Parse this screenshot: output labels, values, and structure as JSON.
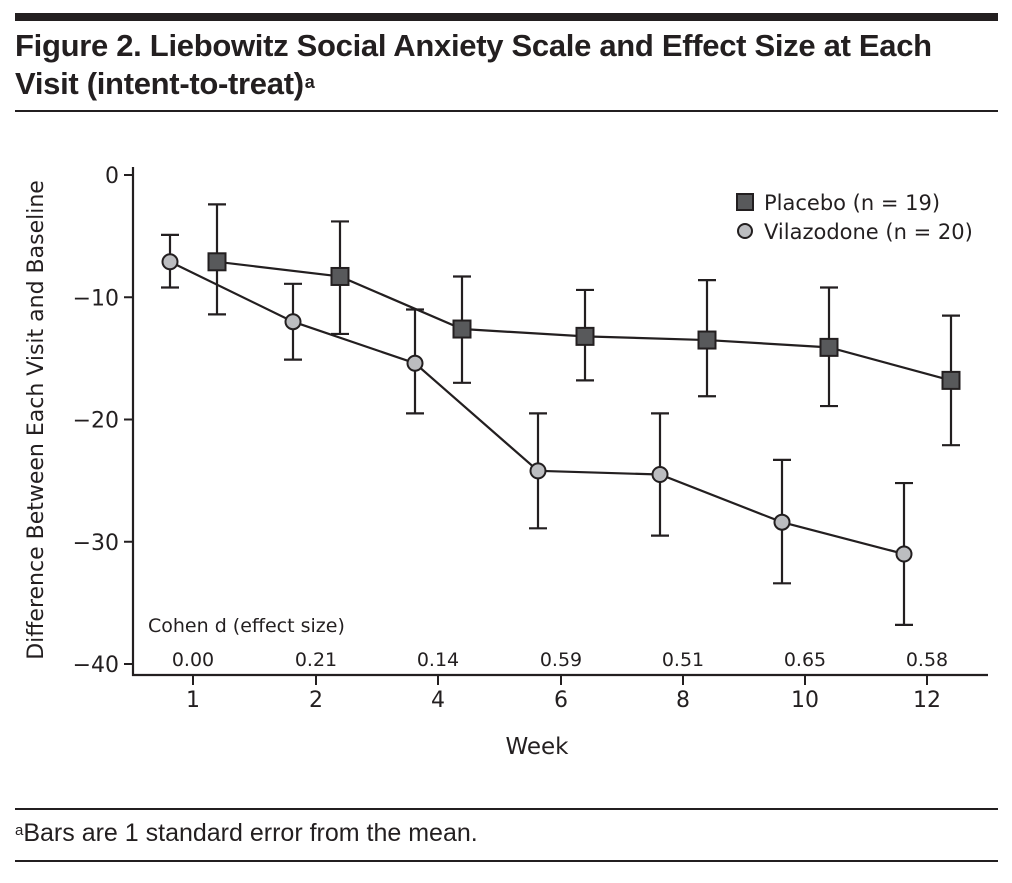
{
  "figure": {
    "title": "Figure 2. Liebowitz Social Anxiety Scale and Effect Size at Each Visit (intent-to-treat)",
    "title_superscript": "a",
    "footnote_marker": "a",
    "footnote": "Bars are 1 standard error from the mean."
  },
  "chart_data": {
    "type": "line",
    "title": "Figure 2. Liebowitz Social Anxiety Scale and Effect Size at Each Visit (intent-to-treat)",
    "xlabel": "Week",
    "ylabel": "Difference Between Each Visit and Baseline",
    "categories": [
      "1",
      "2",
      "4",
      "6",
      "8",
      "10",
      "12"
    ],
    "yticks": [
      0,
      -10,
      -20,
      -30,
      -40
    ],
    "ytick_labels": [
      "0",
      "−10",
      "−20",
      "−30",
      "−40"
    ],
    "ylim": [
      -40,
      0
    ],
    "grid": false,
    "legend_position": "top-right",
    "error_bars": "1 standard error from the mean",
    "series": [
      {
        "name": "Placebo (n = 19)",
        "marker": "square",
        "color": "#58595b",
        "values": [
          -7.1,
          -8.3,
          -12.6,
          -13.2,
          -13.5,
          -14.1,
          -16.8
        ],
        "err_upper": [
          -2.4,
          -3.8,
          -8.3,
          -9.4,
          -8.6,
          -9.2,
          -11.5
        ],
        "err_lower": [
          -11.4,
          -13.0,
          -17.0,
          -16.8,
          -18.1,
          -18.9,
          -22.1
        ]
      },
      {
        "name": "Vilazodone (n = 20)",
        "marker": "circle",
        "color": "#bcbdc0",
        "values": [
          -7.1,
          -12.0,
          -15.4,
          -24.2,
          -24.5,
          -28.4,
          -31.0
        ],
        "err_upper": [
          -4.9,
          -8.9,
          -11.0,
          -19.5,
          -19.5,
          -23.3,
          -25.2
        ],
        "err_lower": [
          -9.2,
          -15.1,
          -19.5,
          -28.9,
          -29.5,
          -33.4,
          -36.8
        ]
      }
    ],
    "effect_size": {
      "label": "Cohen d (effect size)",
      "values": [
        "0.00",
        "0.21",
        "0.14",
        "0.59",
        "0.51",
        "0.65",
        "0.58"
      ]
    }
  }
}
